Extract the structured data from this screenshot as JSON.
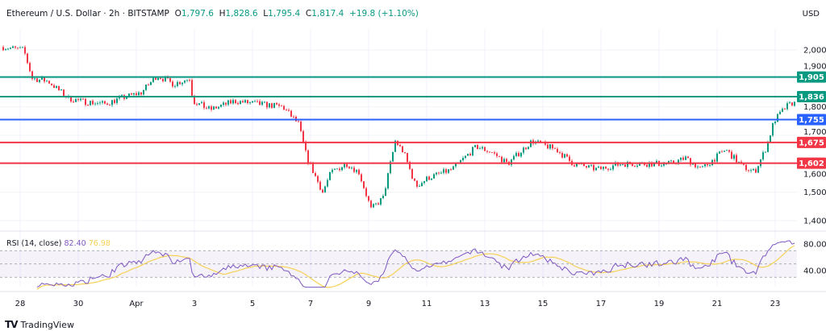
{
  "header": {
    "symbol": "Ethereum / U.S. Dollar · 2h · BITSTAMP",
    "o_label": "O",
    "o": "1,797.6",
    "h_label": "H",
    "h": "1,828.6",
    "l_label": "L",
    "l": "1,795.4",
    "c_label": "C",
    "c": "1,817.4",
    "change": "+19.8 (+1.10%)",
    "currency": "USD"
  },
  "rsi": {
    "label": "RSI (14, close)",
    "value": "82.40",
    "ma_value": "76.98",
    "line_color": "#7e57c2",
    "ma_color": "#f7d154"
  },
  "footer": {
    "brand": "TradingView"
  },
  "colors": {
    "up": "#089981",
    "down": "#f23645"
  },
  "chart_data": {
    "type": "candlestick",
    "interval": "2h",
    "ylim": [
      1370,
      2040
    ],
    "yticks": [
      "2,000",
      "1,900",
      "1,800",
      "1,700",
      "1,600",
      "1,500",
      "1,400"
    ],
    "ytick_values": [
      2000,
      1900,
      1800,
      1700,
      1600,
      1500,
      1400
    ],
    "xticks": [
      {
        "label": "28",
        "t": "Mar 28 00:00"
      },
      {
        "label": "30",
        "t": "Mar 30 00:00"
      },
      {
        "label": "Apr",
        "t": "Apr 1 00:00"
      },
      {
        "label": "3",
        "t": "Apr 3 00:00"
      },
      {
        "label": "5",
        "t": "Apr 5 00:00"
      },
      {
        "label": "7",
        "t": "Apr 7 00:00"
      },
      {
        "label": "9",
        "t": "Apr 9 00:00"
      },
      {
        "label": "11",
        "t": "Apr 11 00:00"
      },
      {
        "label": "13",
        "t": "Apr 13 00:00"
      },
      {
        "label": "15",
        "t": "Apr 15 00:00"
      },
      {
        "label": "17",
        "t": "Apr 17 00:00"
      },
      {
        "label": "19",
        "t": "Apr 19 00:00"
      },
      {
        "label": "21",
        "t": "Apr 21 00:00"
      },
      {
        "label": "23",
        "t": "Apr 23 00:00"
      }
    ],
    "approx_close_path": [
      [
        "Mar 27 10:00",
        2010
      ],
      [
        "Mar 28 03:00",
        2000
      ],
      [
        "Mar 28 10:00",
        1900
      ],
      [
        "Mar 28 23:00",
        1890
      ],
      [
        "Mar 29 16:00",
        1830
      ],
      [
        "Mar 30 02:00",
        1820
      ],
      [
        "Mar 30 22:00",
        1810
      ],
      [
        "Mar 31 11:00",
        1830
      ],
      [
        "Apr 1 04:00",
        1850
      ],
      [
        "Apr 1 17:00",
        1910
      ],
      [
        "Apr 2 07:00",
        1880
      ],
      [
        "Apr 2 20:00",
        1900
      ],
      [
        "Apr 2 23:00",
        1820
      ],
      [
        "Apr 3 13:00",
        1790
      ],
      [
        "Apr 4 09:00",
        1820
      ],
      [
        "Apr 5 05:00",
        1810
      ],
      [
        "Apr 6 01:00",
        1800
      ],
      [
        "Apr 6 14:00",
        1740
      ],
      [
        "Apr 6 21:00",
        1620
      ],
      [
        "Apr 7 10:00",
        1500
      ],
      [
        "Apr 7 17:00",
        1570
      ],
      [
        "Apr 8 06:00",
        1600
      ],
      [
        "Apr 8 16:00",
        1570
      ],
      [
        "Apr 9 02:00",
        1440
      ],
      [
        "Apr 9 12:00",
        1480
      ],
      [
        "Apr 9 22:00",
        1680
      ],
      [
        "Apr 10 05:00",
        1640
      ],
      [
        "Apr 10 15:00",
        1520
      ],
      [
        "Apr 11 01:00",
        1550
      ],
      [
        "Apr 11 21:00",
        1580
      ],
      [
        "Apr 12 17:00",
        1660
      ],
      [
        "Apr 13 06:00",
        1640
      ],
      [
        "Apr 13 19:00",
        1600
      ],
      [
        "Apr 14 15:00",
        1680
      ],
      [
        "Apr 15 11:00",
        1650
      ],
      [
        "Apr 16 01:00",
        1600
      ],
      [
        "Apr 16 21:00",
        1580
      ],
      [
        "Apr 17 17:00",
        1600
      ],
      [
        "Apr 18 13:00",
        1600
      ],
      [
        "Apr 19 09:00",
        1600
      ],
      [
        "Apr 19 22:00",
        1620
      ],
      [
        "Apr 20 11:00",
        1580
      ],
      [
        "Apr 21 07:00",
        1650
      ],
      [
        "Apr 21 21:00",
        1590
      ],
      [
        "Apr 22 07:00",
        1570
      ],
      [
        "Apr 22 17:00",
        1660
      ],
      [
        "Apr 22 23:00",
        1750
      ],
      [
        "Apr 23 09:00",
        1800
      ],
      [
        "Apr 23 16:00",
        1817.4
      ]
    ],
    "levels": [
      {
        "value": 1905,
        "label": "1,905",
        "color": "#089981"
      },
      {
        "value": 1836,
        "label": "1,836",
        "color": "#089981"
      },
      {
        "value": 1755,
        "label": "1,755",
        "color": "#2962ff"
      },
      {
        "value": 1675,
        "label": "1,675",
        "color": "#f23645"
      },
      {
        "value": 1602,
        "label": "1,602",
        "color": "#f23645"
      }
    ],
    "rsi_yticks": [
      "80.00",
      "40.00"
    ],
    "rsi_ytick_values": [
      80,
      40
    ],
    "rsi_bands": [
      70,
      50,
      30
    ]
  }
}
